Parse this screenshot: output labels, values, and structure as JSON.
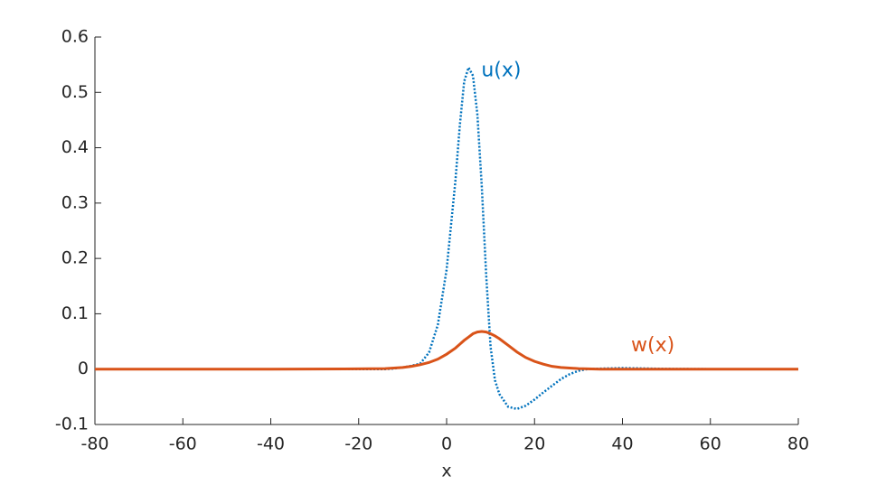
{
  "chart_data": {
    "type": "line",
    "xlabel": "x",
    "x": [
      -80,
      -60,
      -40,
      -20,
      -14,
      -12,
      -10,
      -8,
      -6,
      -4,
      -2,
      0,
      2,
      3,
      4,
      5,
      6,
      7,
      8,
      9,
      10,
      11,
      12,
      14,
      16,
      18,
      20,
      22,
      24,
      26,
      28,
      30,
      32,
      35,
      40,
      50,
      60,
      80
    ],
    "series": [
      {
        "name": "u(x)",
        "color": "#0072bd",
        "values": [
          0,
          0,
          0,
          0,
          0,
          0.001,
          0.003,
          0.006,
          0.01,
          0.03,
          0.08,
          0.18,
          0.34,
          0.44,
          0.52,
          0.545,
          0.53,
          0.46,
          0.33,
          0.17,
          0.04,
          -0.02,
          -0.045,
          -0.068,
          -0.072,
          -0.066,
          -0.055,
          -0.042,
          -0.03,
          -0.018,
          -0.009,
          -0.003,
          0,
          0.001,
          0.002,
          0.0005,
          0,
          0
        ]
      },
      {
        "name": "w(x)",
        "color": "#d95319",
        "values": [
          0,
          0,
          0,
          0.0005,
          0.001,
          0.002,
          0.003,
          0.005,
          0.008,
          0.012,
          0.018,
          0.027,
          0.038,
          0.045,
          0.052,
          0.058,
          0.064,
          0.067,
          0.068,
          0.067,
          0.064,
          0.06,
          0.055,
          0.043,
          0.031,
          0.021,
          0.014,
          0.009,
          0.005,
          0.003,
          0.002,
          0.001,
          0.0005,
          0,
          0,
          0,
          0,
          0
        ]
      }
    ],
    "xlim": [
      -80,
      80
    ],
    "xticks": [
      -80,
      -60,
      -40,
      -20,
      0,
      20,
      40,
      60,
      80
    ],
    "ylim": [
      -0.1,
      0.6
    ],
    "yticks": [
      -0.1,
      0,
      0.1,
      0.2,
      0.3,
      0.4,
      0.5,
      0.6
    ],
    "grid": false
  }
}
